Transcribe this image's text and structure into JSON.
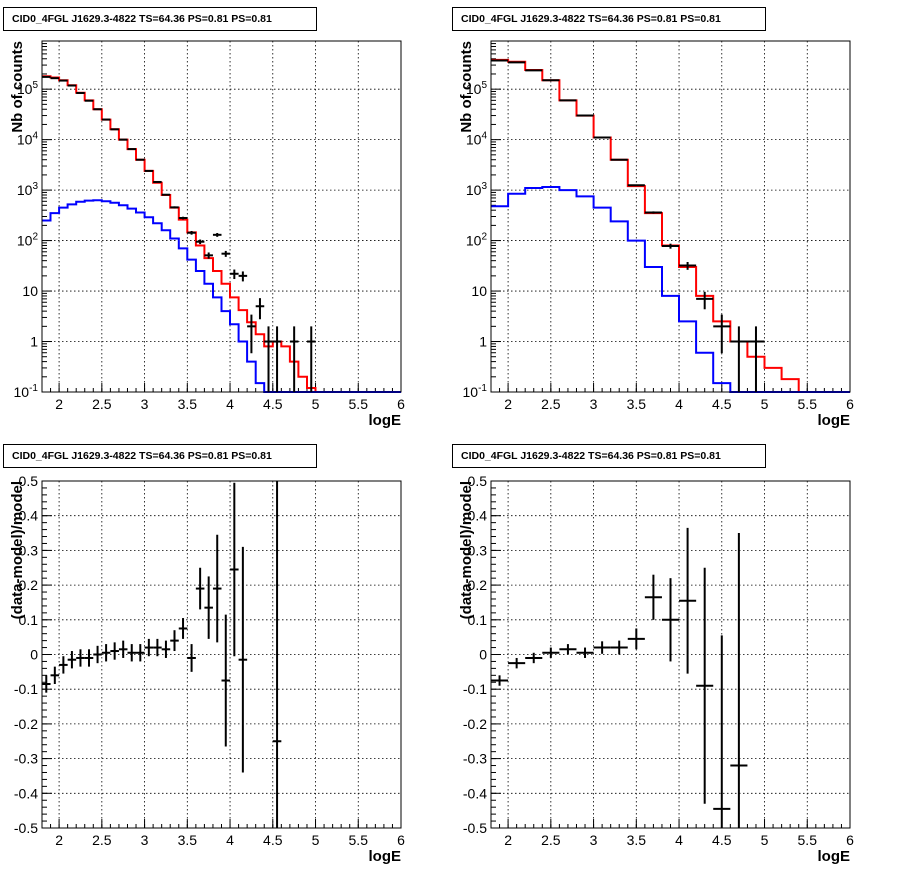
{
  "chart_data": [
    {
      "type": "line",
      "title": "CID0_4FGL J1629.3-4822 TS=64.36 PS=0.81 PS=0.81",
      "xlabel": "logE",
      "ylabel": "Nb of counts",
      "xlim": [
        1.8,
        6.0
      ],
      "ylim": [
        0.1,
        900000
      ],
      "yscale": "log",
      "grid": true,
      "x_ticks": [
        "2",
        "2.5",
        "3",
        "3.5",
        "4",
        "4.5",
        "5",
        "5.5",
        "6"
      ],
      "y_ticks": [
        "10^-1",
        "1",
        "10",
        "10^2",
        "10^3",
        "10^4",
        "10^5"
      ],
      "bin_edges": [
        1.8,
        1.9,
        2.0,
        2.1,
        2.2,
        2.3,
        2.4,
        2.5,
        2.6,
        2.7,
        2.8,
        2.9,
        3.0,
        3.1,
        3.2,
        3.3,
        3.4,
        3.5,
        3.6,
        3.7,
        3.8,
        3.9,
        4.0,
        4.1,
        4.2,
        4.3,
        4.4,
        4.5,
        4.6,
        4.7,
        4.8,
        4.9,
        5.0,
        5.1,
        5.2,
        5.3,
        5.4,
        5.5,
        5.6,
        5.7,
        5.8,
        5.9,
        6.0
      ],
      "series": [
        {
          "color": "#ff0000",
          "values": [
            180000,
            170000,
            150000,
            120000,
            85000,
            60000,
            40000,
            25000,
            16000,
            10000,
            6500,
            4000,
            2400,
            1400,
            800,
            450,
            260,
            145,
            80,
            45,
            25,
            14,
            7.5,
            4.2,
            2.4,
            1.4,
            0.8,
            1.0,
            0.8,
            0.4,
            0.2,
            0.12,
            0.1,
            0.1,
            0.1,
            0.1,
            0.1,
            0.1,
            0.1,
            0.1,
            0.1,
            0.1
          ]
        },
        {
          "color": "#0000ff",
          "values": [
            250,
            350,
            450,
            520,
            590,
            620,
            630,
            600,
            560,
            500,
            430,
            360,
            290,
            220,
            160,
            110,
            70,
            42,
            25,
            14,
            7.5,
            4.0,
            2.2,
            1.0,
            0.4,
            0.15,
            0.08,
            0.06,
            0.06,
            0.06,
            0.06,
            0.06,
            0.06,
            0.06,
            0.06,
            0.06,
            0.06,
            0.06,
            0.06,
            0.06,
            0.06,
            0.06
          ]
        }
      ],
      "data_points": [
        {
          "x": 1.85,
          "y": 175000
        },
        {
          "x": 1.95,
          "y": 165000
        },
        {
          "x": 2.05,
          "y": 148000
        },
        {
          "x": 2.15,
          "y": 118000
        },
        {
          "x": 2.25,
          "y": 84000
        },
        {
          "x": 2.35,
          "y": 59000
        },
        {
          "x": 2.45,
          "y": 40000
        },
        {
          "x": 2.55,
          "y": 25000
        },
        {
          "x": 2.65,
          "y": 16000
        },
        {
          "x": 2.75,
          "y": 10000
        },
        {
          "x": 2.85,
          "y": 6500
        },
        {
          "x": 2.95,
          "y": 4000
        },
        {
          "x": 3.05,
          "y": 2400
        },
        {
          "x": 3.15,
          "y": 1450
        },
        {
          "x": 3.25,
          "y": 810
        },
        {
          "x": 3.35,
          "y": 455
        },
        {
          "x": 3.45,
          "y": 280
        },
        {
          "x": 3.55,
          "y": 143
        },
        {
          "x": 3.65,
          "y": 95
        },
        {
          "x": 3.75,
          "y": 51
        },
        {
          "x": 3.85,
          "y": 130
        },
        {
          "x": 3.95,
          "y": 55
        },
        {
          "x": 4.05,
          "y": 22
        },
        {
          "x": 4.15,
          "y": 20
        },
        {
          "x": 4.25,
          "y": 2
        },
        {
          "x": 4.35,
          "y": 5
        },
        {
          "x": 4.45,
          "y": 1
        },
        {
          "x": 4.55,
          "y": 1
        },
        {
          "x": 4.75,
          "y": 1
        },
        {
          "x": 4.95,
          "y": 1
        }
      ]
    },
    {
      "type": "line",
      "title": "CID0_4FGL J1629.3-4822 TS=64.36 PS=0.81 PS=0.81",
      "xlabel": "logE",
      "ylabel": "Nb of counts",
      "xlim": [
        1.8,
        6.0
      ],
      "ylim": [
        0.1,
        900000
      ],
      "yscale": "log",
      "grid": true,
      "x_ticks": [
        "2",
        "2.5",
        "3",
        "3.5",
        "4",
        "4.5",
        "5",
        "5.5",
        "6"
      ],
      "y_ticks": [
        "10^-1",
        "1",
        "10",
        "10^2",
        "10^3",
        "10^4",
        "10^5"
      ],
      "bin_edges": [
        1.8,
        2.0,
        2.2,
        2.4,
        2.6,
        2.8,
        3.0,
        3.2,
        3.4,
        3.6,
        3.8,
        4.0,
        4.2,
        4.4,
        4.6,
        4.8,
        5.0,
        5.2,
        5.4,
        5.6,
        5.8,
        6.0
      ],
      "series": [
        {
          "color": "#ff0000",
          "values": [
            380000,
            350000,
            240000,
            150000,
            60000,
            30000,
            11000,
            4000,
            1200,
            350,
            80,
            30,
            8,
            2.5,
            1.0,
            0.5,
            0.3,
            0.18,
            0.1,
            0.1,
            0.1
          ]
        },
        {
          "color": "#0000ff",
          "values": [
            480,
            850,
            1100,
            1150,
            1000,
            750,
            450,
            240,
            100,
            30,
            8,
            2.5,
            0.6,
            0.15,
            0.08,
            0.08,
            0.08,
            0.08,
            0.08,
            0.08,
            0.08
          ]
        }
      ],
      "data_points": [
        {
          "x": 1.9,
          "y": 370000
        },
        {
          "x": 2.1,
          "y": 340000
        },
        {
          "x": 2.3,
          "y": 235000
        },
        {
          "x": 2.5,
          "y": 150000
        },
        {
          "x": 2.7,
          "y": 60000
        },
        {
          "x": 2.9,
          "y": 30000
        },
        {
          "x": 3.1,
          "y": 11000
        },
        {
          "x": 3.3,
          "y": 4000
        },
        {
          "x": 3.5,
          "y": 1250
        },
        {
          "x": 3.7,
          "y": 360
        },
        {
          "x": 3.9,
          "y": 78
        },
        {
          "x": 4.1,
          "y": 32
        },
        {
          "x": 4.3,
          "y": 7
        },
        {
          "x": 4.5,
          "y": 2
        },
        {
          "x": 4.7,
          "y": 1
        },
        {
          "x": 4.9,
          "y": 1
        }
      ]
    },
    {
      "type": "scatter",
      "title": "CID0_4FGL J1629.3-4822 TS=64.36 PS=0.81 PS=0.81",
      "xlabel": "logE",
      "ylabel": "(data-model)/model",
      "xlim": [
        1.8,
        6.0
      ],
      "ylim": [
        -0.5,
        0.5
      ],
      "grid": true,
      "x_ticks": [
        "2",
        "2.5",
        "3",
        "3.5",
        "4",
        "4.5",
        "5",
        "5.5",
        "6"
      ],
      "y_ticks": [
        "-0.5",
        "-0.4",
        "-0.3",
        "-0.2",
        "-0.1",
        "0",
        "0.1",
        "0.2",
        "0.3",
        "0.4",
        "0.5"
      ],
      "x_halfwidth": 0.05,
      "points": [
        {
          "x": 1.85,
          "y": -0.085,
          "err": 0.025
        },
        {
          "x": 1.95,
          "y": -0.06,
          "err": 0.025
        },
        {
          "x": 2.05,
          "y": -0.03,
          "err": 0.025
        },
        {
          "x": 2.15,
          "y": -0.015,
          "err": 0.025
        },
        {
          "x": 2.25,
          "y": -0.01,
          "err": 0.025
        },
        {
          "x": 2.35,
          "y": -0.01,
          "err": 0.025
        },
        {
          "x": 2.45,
          "y": 0.0,
          "err": 0.025
        },
        {
          "x": 2.55,
          "y": 0.005,
          "err": 0.025
        },
        {
          "x": 2.65,
          "y": 0.01,
          "err": 0.025
        },
        {
          "x": 2.75,
          "y": 0.015,
          "err": 0.025
        },
        {
          "x": 2.85,
          "y": 0.005,
          "err": 0.025
        },
        {
          "x": 2.95,
          "y": 0.005,
          "err": 0.025
        },
        {
          "x": 3.05,
          "y": 0.02,
          "err": 0.025
        },
        {
          "x": 3.15,
          "y": 0.02,
          "err": 0.025
        },
        {
          "x": 3.25,
          "y": 0.015,
          "err": 0.025
        },
        {
          "x": 3.35,
          "y": 0.04,
          "err": 0.03
        },
        {
          "x": 3.45,
          "y": 0.075,
          "err": 0.03
        },
        {
          "x": 3.55,
          "y": -0.01,
          "err": 0.04
        },
        {
          "x": 3.65,
          "y": 0.19,
          "err": 0.06
        },
        {
          "x": 3.75,
          "y": 0.135,
          "err": 0.09
        },
        {
          "x": 3.85,
          "y": 0.19,
          "err": 0.155
        },
        {
          "x": 3.95,
          "y": -0.075,
          "err": 0.19
        },
        {
          "x": 4.05,
          "y": 0.245,
          "err": 0.25
        },
        {
          "x": 4.15,
          "y": -0.015,
          "err": 0.325
        },
        {
          "x": 4.55,
          "y": -0.25,
          "err": 0.9
        }
      ]
    },
    {
      "type": "scatter",
      "title": "CID0_4FGL J1629.3-4822 TS=64.36 PS=0.81 PS=0.81",
      "xlabel": "logE",
      "ylabel": "(data-model)/model",
      "xlim": [
        1.8,
        6.0
      ],
      "ylim": [
        -0.5,
        0.5
      ],
      "grid": true,
      "x_ticks": [
        "2",
        "2.5",
        "3",
        "3.5",
        "4",
        "4.5",
        "5",
        "5.5",
        "6"
      ],
      "y_ticks": [
        "-0.5",
        "-0.4",
        "-0.3",
        "-0.2",
        "-0.1",
        "0",
        "0.1",
        "0.2",
        "0.3",
        "0.4",
        "0.5"
      ],
      "x_halfwidth": 0.1,
      "points": [
        {
          "x": 1.9,
          "y": -0.075,
          "err": 0.015
        },
        {
          "x": 2.1,
          "y": -0.025,
          "err": 0.015
        },
        {
          "x": 2.3,
          "y": -0.01,
          "err": 0.015
        },
        {
          "x": 2.5,
          "y": 0.005,
          "err": 0.015
        },
        {
          "x": 2.7,
          "y": 0.015,
          "err": 0.015
        },
        {
          "x": 2.9,
          "y": 0.005,
          "err": 0.015
        },
        {
          "x": 3.1,
          "y": 0.02,
          "err": 0.018
        },
        {
          "x": 3.3,
          "y": 0.02,
          "err": 0.02
        },
        {
          "x": 3.5,
          "y": 0.045,
          "err": 0.03
        },
        {
          "x": 3.7,
          "y": 0.165,
          "err": 0.065
        },
        {
          "x": 3.9,
          "y": 0.1,
          "err": 0.12
        },
        {
          "x": 4.1,
          "y": 0.155,
          "err": 0.21
        },
        {
          "x": 4.3,
          "y": -0.09,
          "err": 0.34
        },
        {
          "x": 4.5,
          "y": -0.445,
          "err": 0.5
        },
        {
          "x": 4.7,
          "y": -0.32,
          "err": 0.67
        }
      ]
    }
  ]
}
